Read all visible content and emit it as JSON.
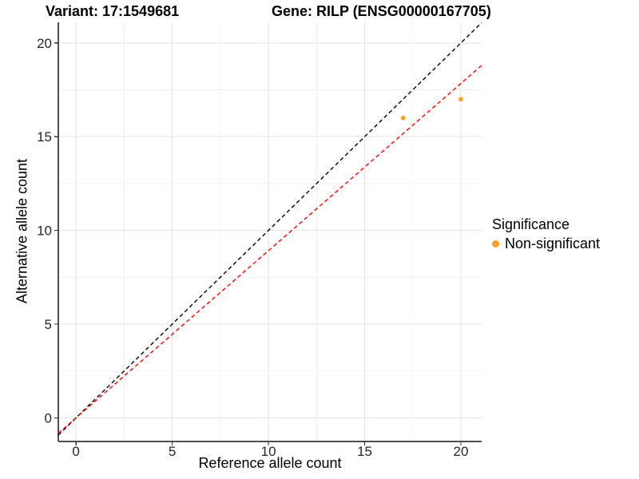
{
  "titles": {
    "variant": "Variant: 17:1549681",
    "gene": "Gene: RILP (ENSG00000167705)"
  },
  "legend": {
    "title": "Significance",
    "items": [
      {
        "label": "Non-significant",
        "color": "#F9A028"
      }
    ]
  },
  "chart_data": {
    "type": "scatter",
    "title": "Variant: 17:1549681  /  Gene: RILP (ENSG00000167705)",
    "xlabel": "Reference allele count",
    "ylabel": "Alternative allele count",
    "xlim": [
      -1,
      21
    ],
    "ylim": [
      -1,
      21
    ],
    "x_ticks": [
      0,
      5,
      10,
      15,
      20
    ],
    "y_ticks": [
      0,
      5,
      10,
      15,
      20
    ],
    "x_minor_ticks": [
      2.5,
      7.5,
      12.5,
      17.5
    ],
    "y_minor_ticks": [
      2.5,
      7.5,
      12.5,
      17.5
    ],
    "grid": true,
    "legend_position": "right",
    "series": [
      {
        "name": "Non-significant",
        "color": "#F9A028",
        "points": [
          {
            "x": 17,
            "y": 16
          },
          {
            "x": 20,
            "y": 17
          }
        ]
      }
    ],
    "ablines": [
      {
        "name": "identity-line",
        "slope": 1,
        "intercept": 0,
        "color": "#000000",
        "style": "dashed"
      },
      {
        "name": "expected-ratio-line",
        "slope": 0.892,
        "intercept": 0,
        "color": "#FF0000",
        "style": "dashed"
      }
    ]
  }
}
